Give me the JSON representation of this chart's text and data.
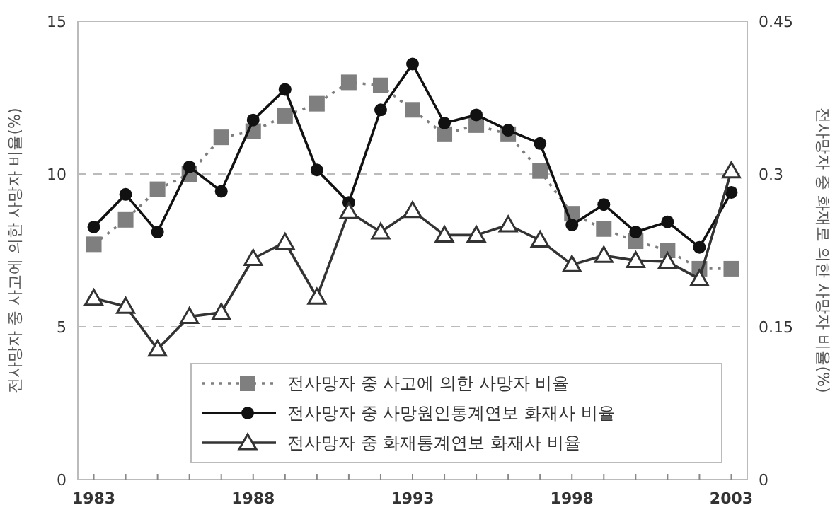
{
  "chart_data": {
    "type": "line",
    "ylabel": "전사망자 중 사고에 의한 사망자 비율(%)",
    "y2label": "전사망자 중 화재로 의한 사망자 비율(%)",
    "x": [
      1983,
      1984,
      1985,
      1986,
      1987,
      1988,
      1989,
      1990,
      1991,
      1992,
      1993,
      1994,
      1995,
      1996,
      1997,
      1998,
      1999,
      2000,
      2001,
      2002,
      2003
    ],
    "xlim": [
      1982.5,
      2003.5
    ],
    "xticks": [
      1983,
      1988,
      1993,
      1998,
      2003
    ],
    "ylim": [
      0,
      15
    ],
    "yticks": [
      0,
      5,
      10,
      15
    ],
    "y2lim": [
      0,
      0.45
    ],
    "y2ticks": [
      0,
      0.15,
      0.3,
      0.45
    ],
    "grid": "y",
    "legend": "bottom",
    "series": [
      {
        "name": "전사망자 중 사고에 의한 사망자 비율",
        "color": "#7f7f7f",
        "marker": "square",
        "line_style": "dotted",
        "values": [
          7.7,
          8.5,
          9.5,
          10.0,
          11.2,
          11.4,
          11.9,
          12.3,
          13.0,
          12.9,
          12.1,
          11.3,
          11.6,
          11.3,
          10.1,
          8.7,
          8.2,
          7.8,
          7.5,
          6.9,
          6.9
        ]
      },
      {
        "name": "전사망자 중 사망원인통계연보 화재사 비율",
        "color": "#111111",
        "marker": "circle",
        "line_style": "solid",
        "axis": "y2",
        "values": [
          0.248,
          0.28,
          0.243,
          0.307,
          0.283,
          0.353,
          0.383,
          0.304,
          0.272,
          0.363,
          0.408,
          0.35,
          0.358,
          0.343,
          0.33,
          0.25,
          0.27,
          0.243,
          0.253,
          0.228,
          0.282
        ]
      },
      {
        "name": "전사망자 중 화재통계연보 화재사 비율",
        "color": "#333333",
        "marker": "triangle",
        "line_style": "solid",
        "axis": "y2",
        "values": [
          0.178,
          0.17,
          0.128,
          0.16,
          0.164,
          0.217,
          0.233,
          0.179,
          0.263,
          0.243,
          0.264,
          0.24,
          0.24,
          0.25,
          0.235,
          0.211,
          0.22,
          0.215,
          0.214,
          0.197,
          0.303
        ]
      }
    ]
  }
}
